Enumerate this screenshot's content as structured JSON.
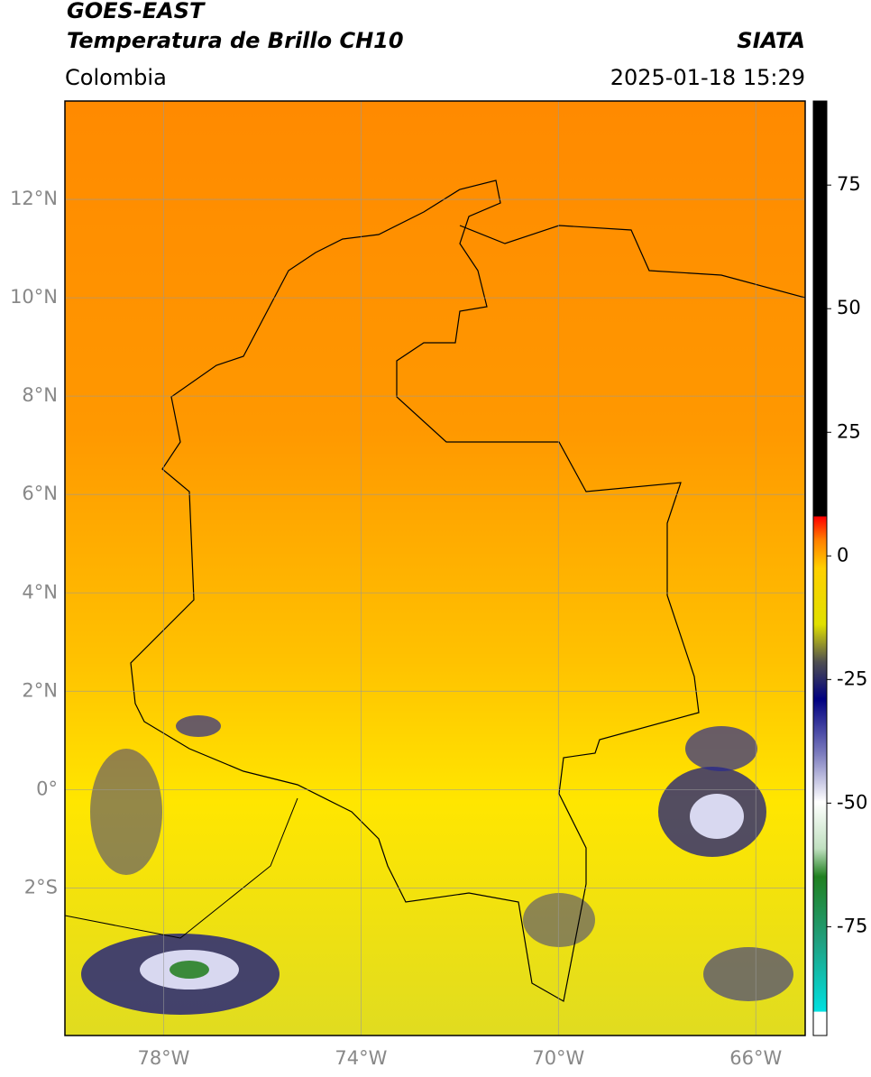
{
  "header": {
    "title": "GOES-EAST",
    "subtitle": "Temperatura de Brillo CH10",
    "source": "SIATA",
    "region": "Colombia",
    "datetime": "2025-01-18 15:29"
  },
  "map": {
    "lonlim": [
      -80,
      -65
    ],
    "latlim": [
      -5,
      14
    ],
    "lonticks": [
      {
        "value": -78,
        "label": "78°W"
      },
      {
        "value": -74,
        "label": "74°W"
      },
      {
        "value": -70,
        "label": "70°W"
      },
      {
        "value": -66,
        "label": "66°W"
      }
    ],
    "latticks": [
      {
        "value": 12,
        "label": "12°N"
      },
      {
        "value": 10,
        "label": "10°N"
      },
      {
        "value": 8,
        "label": "8°N"
      },
      {
        "value": 6,
        "label": "6°N"
      },
      {
        "value": 4,
        "label": "4°N"
      },
      {
        "value": 2,
        "label": "2°N"
      },
      {
        "value": 0,
        "label": "0°"
      },
      {
        "value": -2,
        "label": "2°S"
      }
    ],
    "grid": true
  },
  "colorbar": {
    "clim": [
      -97,
      92
    ],
    "ticks": [
      75,
      50,
      25,
      0,
      -25,
      -50,
      -75
    ]
  }
}
